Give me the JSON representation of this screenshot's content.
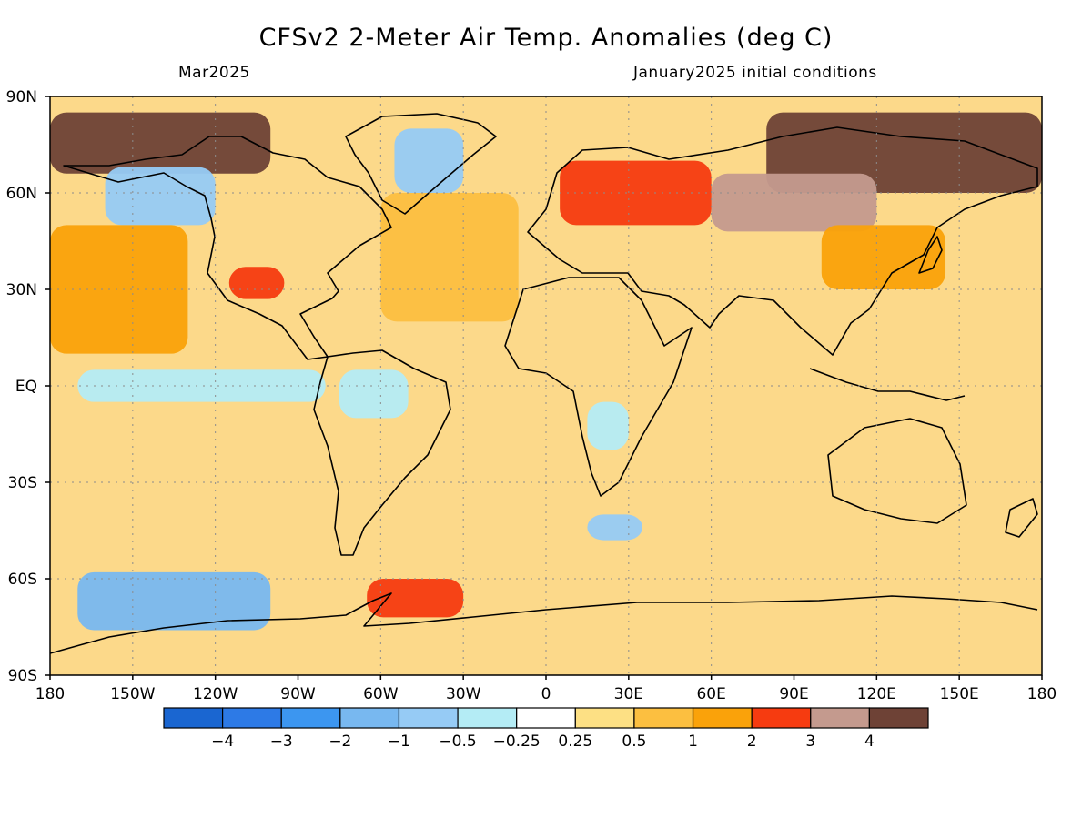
{
  "header": {
    "title": "CFSv2 2-Meter Air Temp. Anomalies (deg C)",
    "valid_month": "Mar2025",
    "init_conditions": "January2025 initial conditions"
  },
  "map": {
    "projection": "equirectangular",
    "grid": true,
    "lat_labels": [
      "90N",
      "60N",
      "30N",
      "EQ",
      "30S",
      "60S",
      "90S"
    ],
    "lon_labels": [
      "180",
      "150W",
      "120W",
      "90W",
      "60W",
      "30W",
      "0",
      "30E",
      "60E",
      "90E",
      "120E",
      "150E",
      "180"
    ],
    "regions": [
      {
        "name": "Arctic Ocean (Canada sector)",
        "lon": [
          -180,
          -100
        ],
        "lat": [
          66,
          85
        ],
        "anomaly": ">4"
      },
      {
        "name": "Northern Siberia",
        "lon": [
          80,
          180
        ],
        "lat": [
          60,
          85
        ],
        "anomaly": ">4"
      },
      {
        "name": "Central Russia",
        "lon": [
          60,
          120
        ],
        "lat": [
          48,
          66
        ],
        "anomaly": "3 to 4"
      },
      {
        "name": "Northern Europe / Scandinavia",
        "lon": [
          5,
          60
        ],
        "lat": [
          50,
          70
        ],
        "anomaly": "2 to 3"
      },
      {
        "name": "Southwestern United States",
        "lon": [
          -115,
          -95
        ],
        "lat": [
          27,
          37
        ],
        "anomaly": "2 to 3"
      },
      {
        "name": "Alaska / Western Canada",
        "lon": [
          -160,
          -120
        ],
        "lat": [
          50,
          68
        ],
        "anomaly": "-1 to -0.5"
      },
      {
        "name": "Greenland",
        "lon": [
          -55,
          -30
        ],
        "lat": [
          60,
          80
        ],
        "anomaly": "-1 to -0.25"
      },
      {
        "name": "Equatorial Pacific",
        "lon": [
          -170,
          -80
        ],
        "lat": [
          -5,
          5
        ],
        "anomaly": "-0.5 to 0.25"
      },
      {
        "name": "Amazon basin",
        "lon": [
          -75,
          -50
        ],
        "lat": [
          -10,
          5
        ],
        "anomaly": "-0.5 to -0.25"
      },
      {
        "name": "Southern Africa interior",
        "lon": [
          15,
          30
        ],
        "lat": [
          -20,
          -5
        ],
        "anomaly": "-0.5 to -0.25"
      },
      {
        "name": "South Atlantic (off Africa)",
        "lon": [
          15,
          35
        ],
        "lat": [
          -48,
          -40
        ],
        "anomaly": "-1 to -0.5"
      },
      {
        "name": "Amundsen / Ross Sea sector",
        "lon": [
          -170,
          -100
        ],
        "lat": [
          -76,
          -58
        ],
        "anomaly": "-2 to -1"
      },
      {
        "name": "Antarctic Peninsula / Weddell Sea",
        "lon": [
          -65,
          -30
        ],
        "lat": [
          -72,
          -60
        ],
        "anomaly": "2 to 3"
      },
      {
        "name": "East Asia / Japan",
        "lon": [
          100,
          145
        ],
        "lat": [
          30,
          50
        ],
        "anomaly": "1 to 2"
      },
      {
        "name": "North Atlantic",
        "lon": [
          -60,
          -10
        ],
        "lat": [
          20,
          60
        ],
        "anomaly": "0.5 to 1"
      },
      {
        "name": "North Pacific",
        "lon": [
          -180,
          -130
        ],
        "lat": [
          10,
          50
        ],
        "anomaly": "1 to 2"
      }
    ]
  },
  "legend": {
    "thresholds": [
      "-4",
      "-3",
      "-2",
      "-1",
      "-0.5",
      "-0.25",
      "0.25",
      "0.5",
      "1",
      "2",
      "3",
      "4"
    ],
    "colors": [
      "#1a66d1",
      "#2d7ae6",
      "#3c96f0",
      "#78b8f0",
      "#96cbf5",
      "#b4ecf5",
      "#ffffff",
      "#fde084",
      "#fcbf40",
      "#faa20a",
      "#f63b10",
      "#c49a8e",
      "#6e4236"
    ]
  },
  "colors": {
    "grid": "#8c8c8c",
    "coastline": "#000000"
  }
}
